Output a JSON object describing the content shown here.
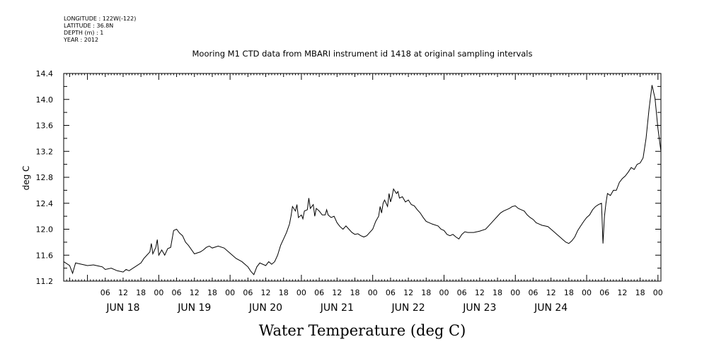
{
  "header": {
    "longitude": "LONGITUDE : 122W(-122)",
    "latitude": "LATITUDE : 36.8N",
    "depth": "DEPTH (m) : 1",
    "year": "YEAR : 2012"
  },
  "chart_data": {
    "type": "line",
    "title": "Mooring M1 CTD data from MBARI instrument id 1418 at original sampling intervals",
    "xlabel": "Water Temperature (deg C)",
    "ylabel": "deg C",
    "ylim": [
      11.2,
      14.4
    ],
    "y_ticks": [
      "11.2",
      "11.6",
      "12.0",
      "12.4",
      "12.8",
      "13.2",
      "13.6",
      "14.0",
      "14.4"
    ],
    "x_range_hours": [
      -8,
      193
    ],
    "hour_ticks": [
      "06",
      "12",
      "18",
      "00",
      "06",
      "12",
      "18",
      "00",
      "06",
      "12",
      "18",
      "00",
      "06",
      "12",
      "18",
      "00",
      "06",
      "12",
      "18",
      "00",
      "06",
      "12",
      "18",
      "00",
      "06",
      "12",
      "18",
      "00",
      "06",
      "12",
      "18",
      "00"
    ],
    "day_labels": [
      "JUN 18",
      "JUN 19",
      "JUN 20",
      "JUN 21",
      "JUN 22",
      "JUN 23",
      "JUN 24"
    ],
    "grid": false,
    "series": [
      {
        "color": "#000000",
        "points": [
          [
            -8,
            11.5
          ],
          [
            -6,
            11.44
          ],
          [
            -5,
            11.32
          ],
          [
            -4,
            11.48
          ],
          [
            -2,
            11.46
          ],
          [
            0,
            11.44
          ],
          [
            2,
            11.45
          ],
          [
            4,
            11.43
          ],
          [
            5,
            11.42
          ],
          [
            6,
            11.38
          ],
          [
            8,
            11.4
          ],
          [
            10,
            11.36
          ],
          [
            12,
            11.34
          ],
          [
            13,
            11.38
          ],
          [
            14,
            11.36
          ],
          [
            16,
            11.42
          ],
          [
            18,
            11.48
          ],
          [
            19,
            11.55
          ],
          [
            20,
            11.6
          ],
          [
            21,
            11.65
          ],
          [
            21.5,
            11.78
          ],
          [
            22,
            11.62
          ],
          [
            23,
            11.72
          ],
          [
            23.5,
            11.84
          ],
          [
            24,
            11.6
          ],
          [
            25,
            11.68
          ],
          [
            26,
            11.6
          ],
          [
            27,
            11.7
          ],
          [
            28,
            11.72
          ],
          [
            29,
            11.98
          ],
          [
            30,
            12.0
          ],
          [
            31,
            11.94
          ],
          [
            32,
            11.9
          ],
          [
            33,
            11.8
          ],
          [
            34,
            11.75
          ],
          [
            36,
            11.62
          ],
          [
            38,
            11.65
          ],
          [
            39,
            11.68
          ],
          [
            40,
            11.72
          ],
          [
            41,
            11.74
          ],
          [
            42,
            11.71
          ],
          [
            44,
            11.74
          ],
          [
            46,
            11.71
          ],
          [
            48,
            11.63
          ],
          [
            50,
            11.55
          ],
          [
            52,
            11.5
          ],
          [
            54,
            11.42
          ],
          [
            55,
            11.35
          ],
          [
            56,
            11.3
          ],
          [
            57,
            11.42
          ],
          [
            58,
            11.48
          ],
          [
            60,
            11.44
          ],
          [
            61,
            11.5
          ],
          [
            62,
            11.46
          ],
          [
            63,
            11.5
          ],
          [
            64,
            11.6
          ],
          [
            65,
            11.75
          ],
          [
            66,
            11.85
          ],
          [
            67,
            11.95
          ],
          [
            68,
            12.08
          ],
          [
            68.5,
            12.2
          ],
          [
            69,
            12.35
          ],
          [
            70,
            12.28
          ],
          [
            70.5,
            12.38
          ],
          [
            71,
            12.18
          ],
          [
            72,
            12.22
          ],
          [
            72.5,
            12.16
          ],
          [
            73,
            12.28
          ],
          [
            74,
            12.3
          ],
          [
            74.5,
            12.48
          ],
          [
            75,
            12.32
          ],
          [
            76,
            12.38
          ],
          [
            76.5,
            12.2
          ],
          [
            77,
            12.32
          ],
          [
            78,
            12.28
          ],
          [
            79,
            12.22
          ],
          [
            80,
            12.22
          ],
          [
            80.5,
            12.3
          ],
          [
            81,
            12.22
          ],
          [
            82,
            12.18
          ],
          [
            83,
            12.2
          ],
          [
            84,
            12.1
          ],
          [
            85,
            12.04
          ],
          [
            86,
            12.0
          ],
          [
            87,
            12.05
          ],
          [
            88,
            12.0
          ],
          [
            89,
            11.95
          ],
          [
            90,
            11.92
          ],
          [
            91,
            11.93
          ],
          [
            92,
            11.9
          ],
          [
            93,
            11.88
          ],
          [
            94,
            11.9
          ],
          [
            95,
            11.95
          ],
          [
            96,
            12.0
          ],
          [
            97,
            12.12
          ],
          [
            98,
            12.2
          ],
          [
            98.5,
            12.35
          ],
          [
            99,
            12.25
          ],
          [
            99.5,
            12.4
          ],
          [
            100,
            12.45
          ],
          [
            101,
            12.35
          ],
          [
            101.5,
            12.55
          ],
          [
            102,
            12.42
          ],
          [
            102.5,
            12.5
          ],
          [
            103,
            12.62
          ],
          [
            104,
            12.55
          ],
          [
            104.5,
            12.58
          ],
          [
            105,
            12.48
          ],
          [
            106,
            12.5
          ],
          [
            107,
            12.42
          ],
          [
            108,
            12.45
          ],
          [
            109,
            12.38
          ],
          [
            110,
            12.36
          ],
          [
            111,
            12.3
          ],
          [
            112,
            12.25
          ],
          [
            113,
            12.18
          ],
          [
            114,
            12.12
          ],
          [
            115,
            12.1
          ],
          [
            116,
            12.08
          ],
          [
            118,
            12.05
          ],
          [
            119,
            12.0
          ],
          [
            120,
            11.98
          ],
          [
            121,
            11.92
          ],
          [
            122,
            11.9
          ],
          [
            123,
            11.92
          ],
          [
            124,
            11.88
          ],
          [
            125,
            11.85
          ],
          [
            126,
            11.92
          ],
          [
            127,
            11.96
          ],
          [
            128,
            11.95
          ],
          [
            130,
            11.95
          ],
          [
            132,
            11.97
          ],
          [
            134,
            12.0
          ],
          [
            135,
            12.05
          ],
          [
            136,
            12.1
          ],
          [
            137,
            12.15
          ],
          [
            138,
            12.2
          ],
          [
            139,
            12.25
          ],
          [
            140,
            12.28
          ],
          [
            141,
            12.3
          ],
          [
            142,
            12.32
          ],
          [
            143,
            12.35
          ],
          [
            144,
            12.36
          ],
          [
            145,
            12.32
          ],
          [
            146,
            12.3
          ],
          [
            147,
            12.28
          ],
          [
            148,
            12.22
          ],
          [
            149,
            12.18
          ],
          [
            150,
            12.15
          ],
          [
            151,
            12.1
          ],
          [
            152,
            12.08
          ],
          [
            153,
            12.06
          ],
          [
            154,
            12.05
          ],
          [
            155,
            12.04
          ],
          [
            156,
            12.0
          ],
          [
            157,
            11.96
          ],
          [
            158,
            11.92
          ],
          [
            159,
            11.88
          ],
          [
            160,
            11.84
          ],
          [
            161,
            11.8
          ],
          [
            162,
            11.78
          ],
          [
            163,
            11.82
          ],
          [
            164,
            11.88
          ],
          [
            165,
            11.98
          ],
          [
            166,
            12.05
          ],
          [
            167,
            12.12
          ],
          [
            168,
            12.18
          ],
          [
            169,
            12.22
          ],
          [
            170,
            12.3
          ],
          [
            171,
            12.35
          ],
          [
            172,
            12.38
          ],
          [
            173,
            12.4
          ],
          [
            173.5,
            11.78
          ],
          [
            174,
            12.2
          ],
          [
            174.5,
            12.4
          ],
          [
            175,
            12.55
          ],
          [
            176,
            12.52
          ],
          [
            177,
            12.6
          ],
          [
            178,
            12.6
          ],
          [
            179,
            12.72
          ],
          [
            180,
            12.78
          ],
          [
            181,
            12.82
          ],
          [
            182,
            12.88
          ],
          [
            183,
            12.95
          ],
          [
            184,
            12.92
          ],
          [
            185,
            13.0
          ],
          [
            186,
            13.02
          ],
          [
            187,
            13.1
          ],
          [
            188,
            13.4
          ],
          [
            189,
            13.85
          ],
          [
            190,
            14.22
          ],
          [
            191,
            14.02
          ],
          [
            192,
            13.55
          ],
          [
            193,
            13.2
          ]
        ]
      }
    ]
  }
}
